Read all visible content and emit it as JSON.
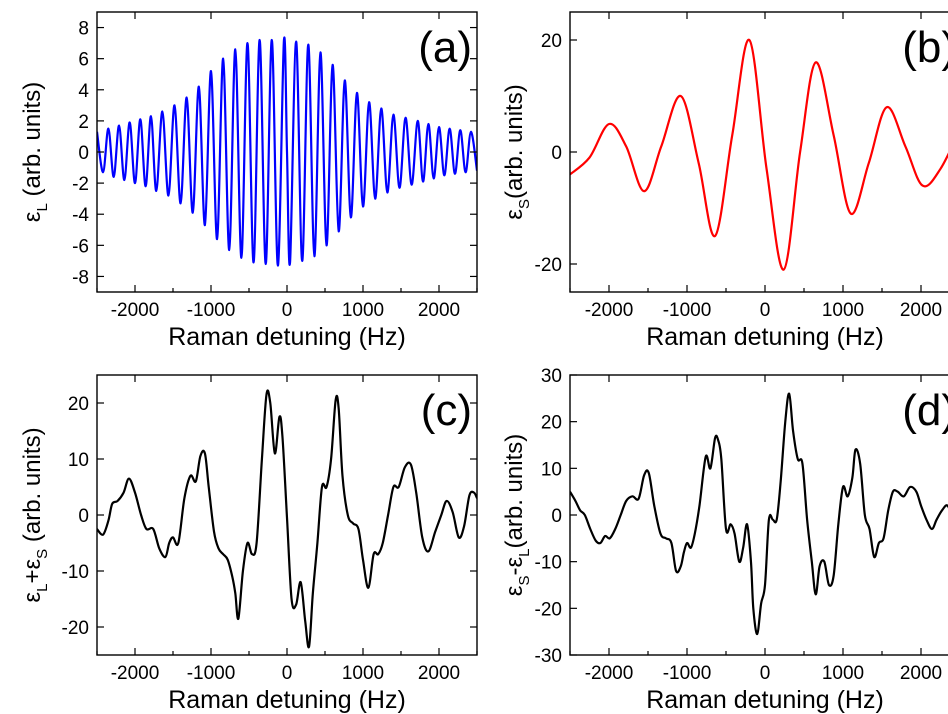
{
  "chart_data": [
    {
      "type": "line",
      "panel": "(a)",
      "color": "#0000ff",
      "xlabel": "Raman detuning (Hz)",
      "ylabel": "ε",
      "ylabel_sub": "L",
      "ylabel_suffix": " (arb. units)",
      "xlim": [
        -2500,
        2500
      ],
      "ylim": [
        -9,
        9
      ],
      "xticks": [
        -2000,
        -1000,
        0,
        1000,
        2000
      ],
      "yticks": [
        -8,
        -6,
        -4,
        -2,
        0,
        2,
        4,
        6,
        8
      ],
      "xtick_labels": [
        "-2000",
        "-1000",
        "0",
        "1000",
        "2000"
      ],
      "ytick_labels": [
        "-8",
        "-6",
        "-4",
        "-2",
        "0",
        "2",
        "4",
        "6",
        "8"
      ],
      "series": [
        {
          "x": [
            -2500,
            -2420,
            -2350,
            -2280,
            -2210,
            -2140,
            -2070,
            -2000,
            -1930,
            -1860,
            -1790,
            -1720,
            -1640,
            -1560,
            -1480,
            -1400,
            -1320,
            -1240,
            -1160,
            -1080,
            -1000,
            -920,
            -840,
            -760,
            -680,
            -600,
            -520,
            -440,
            -360,
            -280,
            -200,
            -120,
            -40,
            0,
            40,
            120,
            200,
            280,
            360,
            440,
            520,
            600,
            680,
            760,
            840,
            920,
            1000,
            1080,
            1160,
            1240,
            1320,
            1400,
            1480,
            1560,
            1640,
            1720,
            1790,
            1860,
            1930,
            2000,
            2070,
            2140,
            2210,
            2280,
            2350,
            2420,
            2500
          ],
          "values": [
            1.3,
            -1.3,
            1.5,
            -1.6,
            1.7,
            -1.8,
            1.9,
            -2.0,
            2.1,
            -2.2,
            2.3,
            -2.5,
            2.6,
            -2.8,
            3.0,
            -3.3,
            3.5,
            -3.9,
            4.2,
            -4.7,
            5.2,
            -5.6,
            6.0,
            -6.3,
            6.6,
            -6.8,
            7.0,
            -7.1,
            7.2,
            -7.2,
            7.2,
            -7.3,
            7.2,
            0,
            -7.1,
            7.1,
            -7.0,
            6.9,
            -6.7,
            6.4,
            -6.0,
            5.6,
            -5.1,
            4.6,
            -4.2,
            3.8,
            -3.5,
            3.2,
            -3.0,
            2.8,
            -2.6,
            2.4,
            -2.3,
            2.2,
            -2.1,
            2.0,
            -1.9,
            1.8,
            -1.7,
            1.6,
            -1.5,
            1.5,
            -1.4,
            1.4,
            -1.3,
            1.3,
            -1.2
          ]
        }
      ]
    },
    {
      "type": "line",
      "panel": "(b)",
      "color": "#ff0000",
      "xlabel": "Raman detuning (Hz)",
      "ylabel": "ε",
      "ylabel_sub": "S",
      "ylabel_suffix": "(arb. units)",
      "xlim": [
        -2500,
        2500
      ],
      "ylim": [
        -25,
        25
      ],
      "xticks": [
        -2000,
        -1000,
        0,
        1000,
        2000
      ],
      "yticks": [
        -20,
        0,
        20
      ],
      "xtick_labels": [
        "-2000",
        "-1000",
        "0",
        "1000",
        "2000"
      ],
      "ytick_labels": [
        "-20",
        "0",
        "20"
      ],
      "series": [
        {
          "x": [
            -2500,
            -2250,
            -2000,
            -1780,
            -1550,
            -1330,
            -1080,
            -850,
            -640,
            -420,
            -200,
            20,
            240,
            450,
            650,
            880,
            1100,
            1330,
            1560,
            1800,
            2020,
            2250,
            2500
          ],
          "values": [
            -4,
            -1,
            5,
            1,
            -7,
            1,
            10,
            -2,
            -15,
            3,
            20,
            -3,
            -21,
            0,
            16,
            3,
            -11,
            -2,
            8,
            1,
            -6,
            -3,
            4
          ]
        }
      ]
    },
    {
      "type": "line",
      "panel": "(c)",
      "color": "#000000",
      "xlabel": "Raman detuning (Hz)",
      "ylabel": "ε",
      "ylabel_sub": "L",
      "ylabel_mid": "+ε",
      "ylabel_sub2": "S",
      "ylabel_suffix": " (arb. units)",
      "xlim": [
        -2500,
        2500
      ],
      "ylim": [
        -25,
        25
      ],
      "xticks": [
        -2000,
        -1000,
        0,
        1000,
        2000
      ],
      "yticks": [
        -20,
        -10,
        0,
        10,
        20
      ],
      "xtick_labels": [
        "-2000",
        "-1000",
        "0",
        "1000",
        "2000"
      ],
      "ytick_labels": [
        "-20",
        "-10",
        "0",
        "10",
        "20"
      ],
      "series": [
        {
          "x": [
            -2500,
            -2420,
            -2350,
            -2300,
            -2230,
            -2150,
            -2080,
            -2000,
            -1920,
            -1850,
            -1760,
            -1680,
            -1600,
            -1550,
            -1500,
            -1430,
            -1350,
            -1270,
            -1200,
            -1140,
            -1080,
            -1030,
            -960,
            -900,
            -840,
            -780,
            -720,
            -680,
            -640,
            -580,
            -520,
            -460,
            -400,
            -330,
            -270,
            -220,
            -160,
            -100,
            -60,
            0,
            60,
            120,
            180,
            240,
            290,
            340,
            400,
            460,
            520,
            580,
            640,
            680,
            730,
            800,
            870,
            940,
            1000,
            1070,
            1140,
            1200,
            1260,
            1330,
            1400,
            1470,
            1550,
            1630,
            1700,
            1780,
            1860,
            1950,
            2030,
            2100,
            2180,
            2260,
            2330,
            2400,
            2460,
            2500
          ],
          "values": [
            -2.5,
            -3.5,
            -1,
            2,
            2.5,
            4,
            6.5,
            4,
            0,
            -2.5,
            -2.5,
            -6,
            -7.5,
            -5,
            -4,
            -5,
            3,
            7,
            6,
            10.5,
            11,
            5,
            -3,
            -6,
            -7,
            -8,
            -11,
            -14,
            -18.5,
            -10,
            -5,
            -7,
            -5,
            10,
            21.5,
            20,
            11,
            17.5,
            14,
            -0.5,
            -15,
            -16,
            -12,
            -19,
            -23.5,
            -14,
            -5,
            5,
            5,
            10,
            20.5,
            19,
            7,
            0,
            -1.5,
            -2.5,
            -8,
            -13,
            -7,
            -7,
            -5,
            0,
            5,
            5,
            8.5,
            9,
            4,
            -4,
            -6.5,
            -3,
            0,
            2.5,
            0.5,
            -4,
            -2,
            3.5,
            4,
            3
          ]
        }
      ]
    },
    {
      "type": "line",
      "panel": "(d)",
      "color": "#000000",
      "xlabel": "Raman detuning (Hz)",
      "ylabel": "ε",
      "ylabel_sub": "S",
      "ylabel_mid": "-ε",
      "ylabel_sub2": "L",
      "ylabel_suffix": "(arb. units)",
      "xlim": [
        -2500,
        2500
      ],
      "ylim": [
        -30,
        30
      ],
      "xticks": [
        -2000,
        -1000,
        0,
        1000,
        2000
      ],
      "yticks": [
        -30,
        -20,
        -10,
        0,
        10,
        20,
        30
      ],
      "xtick_labels": [
        "-2000",
        "-1000",
        "0",
        "1000",
        "2000"
      ],
      "ytick_labels": [
        "-30",
        "-20",
        "-10",
        "0",
        "10",
        "20",
        "30"
      ],
      "series": [
        {
          "x": [
            -2500,
            -2430,
            -2370,
            -2310,
            -2240,
            -2170,
            -2110,
            -2050,
            -1990,
            -1920,
            -1850,
            -1780,
            -1700,
            -1620,
            -1550,
            -1490,
            -1420,
            -1340,
            -1270,
            -1200,
            -1140,
            -1080,
            -1040,
            -1000,
            -950,
            -900,
            -840,
            -760,
            -700,
            -640,
            -600,
            -560,
            -500,
            -440,
            -390,
            -330,
            -280,
            -230,
            -180,
            -150,
            -100,
            -50,
            0,
            50,
            100,
            150,
            200,
            260,
            310,
            360,
            420,
            480,
            540,
            600,
            650,
            700,
            760,
            820,
            880,
            940,
            1000,
            1060,
            1120,
            1160,
            1220,
            1280,
            1340,
            1400,
            1460,
            1520,
            1580,
            1640,
            1700,
            1780,
            1860,
            1940,
            2000,
            2070,
            2140,
            2200,
            2270,
            2340,
            2420,
            2500
          ],
          "values": [
            5,
            3,
            1,
            0,
            -3,
            -5.5,
            -6,
            -4.5,
            -5,
            -3,
            0,
            3,
            4,
            3.5,
            8.5,
            9,
            2,
            -4,
            -5,
            -6,
            -12,
            -11,
            -8,
            -6,
            -7,
            -4,
            2,
            12.5,
            10,
            16.5,
            16,
            12,
            -3,
            -2,
            -4,
            -10,
            -7,
            -2,
            -10,
            -20,
            -25.5,
            -19,
            -15,
            -1,
            -1,
            -1,
            7,
            20,
            26,
            18,
            12,
            11,
            -1,
            -10,
            -17,
            -11,
            -10,
            -15,
            -13,
            -2,
            6,
            4,
            8,
            14,
            11,
            0,
            -3,
            -9,
            -6,
            -5,
            1,
            5,
            5,
            4,
            6,
            5,
            2,
            -1,
            -3,
            -1,
            1,
            2,
            -1,
            -2
          ]
        }
      ]
    }
  ]
}
